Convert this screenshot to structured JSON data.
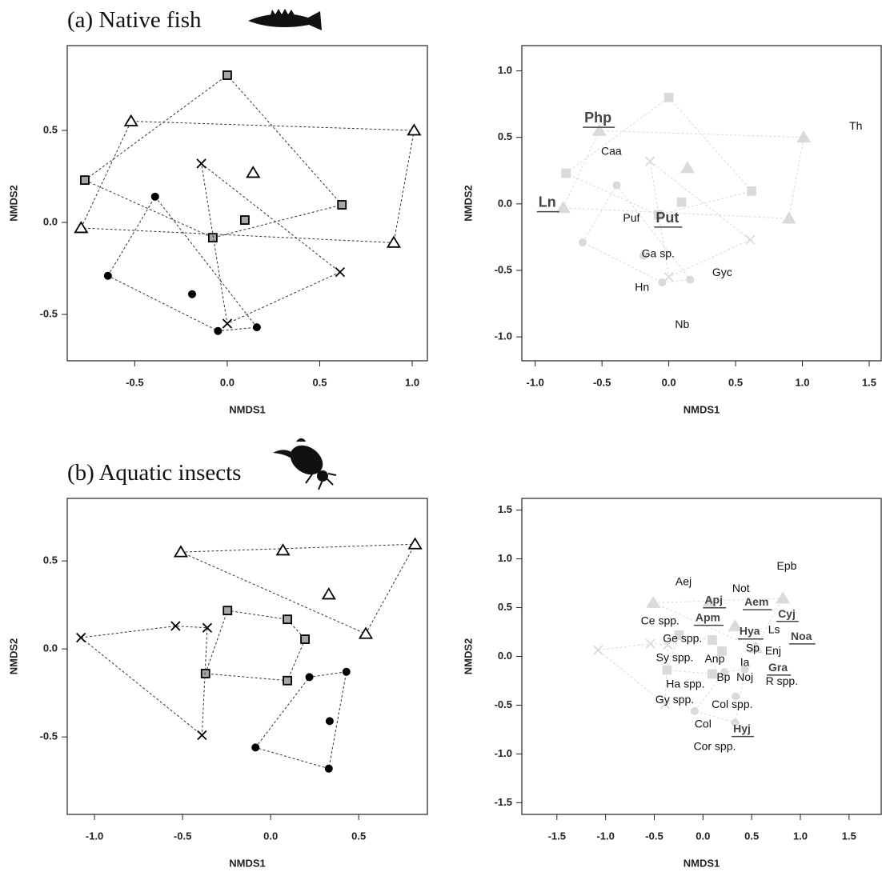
{
  "chart_data": [
    {
      "type": "scatter",
      "title": "(a) Native fish",
      "xlabel": "NMDS1",
      "ylabel": "NMDS2",
      "xlim": [
        -0.865,
        1.082
      ],
      "ylim": [
        -0.752,
        0.961
      ],
      "xticks": [
        -0.5,
        {
          "value": 0,
          "label": "0.0"
        },
        0.5,
        {
          "value": 1,
          "label": "1.0"
        }
      ],
      "yticks": [
        -0.5,
        {
          "value": 0,
          "label": "0.0"
        },
        0.5
      ],
      "hulls": true,
      "series": [
        {
          "marker": "square",
          "color": "#a6a6a6",
          "x": [
            0.0,
            -0.77,
            0.095,
            -0.078,
            0.62
          ],
          "y": [
            0.8,
            0.23,
            0.013,
            -0.083,
            0.096
          ]
        },
        {
          "marker": "triangle",
          "color": "#ffffff",
          "x": [
            -0.52,
            -0.79,
            0.14,
            1.01,
            0.9
          ],
          "y": [
            0.55,
            -0.03,
            0.27,
            0.5,
            -0.11
          ]
        },
        {
          "marker": "cross",
          "color": "#000000",
          "x": [
            -0.14,
            0.61,
            0.0
          ],
          "y": [
            0.32,
            -0.27,
            -0.55
          ]
        },
        {
          "marker": "circle",
          "color": "#000000",
          "x": [
            -0.39,
            -0.645,
            -0.19,
            -0.05,
            0.16
          ],
          "y": [
            0.14,
            -0.29,
            -0.39,
            -0.59,
            -0.57
          ]
        }
      ]
    },
    {
      "type": "biplot",
      "xlabel": "NMDS1",
      "ylabel": "NMDS2",
      "xlim": [
        -1.1,
        1.59
      ],
      "ylim": [
        -1.18,
        1.19
      ],
      "xticks": [
        {
          "value": -1,
          "label": "-1.0"
        },
        -0.5,
        {
          "value": 0,
          "label": "0.0"
        },
        0.5,
        {
          "value": 1,
          "label": "1.0"
        },
        1.5
      ],
      "yticks": [
        {
          "value": -1,
          "label": "-1.0"
        },
        -0.5,
        {
          "value": 0,
          "label": "0.0"
        },
        0.5,
        {
          "value": 1,
          "label": "1.0"
        }
      ],
      "points_color": "#dadada",
      "labels": [
        {
          "text": "Php",
          "x": -0.53,
          "y": 0.64,
          "bold": true
        },
        {
          "text": "Th",
          "x": 1.4,
          "y": 0.58,
          "bold": false
        },
        {
          "text": "Caa",
          "x": -0.43,
          "y": 0.39,
          "bold": false
        },
        {
          "text": "Ln",
          "x": -0.91,
          "y": 0.006,
          "bold": true
        },
        {
          "text": "Puf",
          "x": -0.28,
          "y": -0.11,
          "bold": false
        },
        {
          "text": "Put",
          "x": -0.01,
          "y": -0.11,
          "bold": true
        },
        {
          "text": "Ga sp.",
          "x": -0.08,
          "y": -0.38,
          "bold": false
        },
        {
          "text": "Gyc",
          "x": 0.4,
          "y": -0.52,
          "bold": false
        },
        {
          "text": "Hn",
          "x": -0.2,
          "y": -0.63,
          "bold": false
        },
        {
          "text": "Nb",
          "x": 0.1,
          "y": -0.91,
          "bold": false
        }
      ]
    },
    {
      "type": "scatter",
      "title": "(b) Aquatic insects",
      "xlabel": "NMDS1",
      "ylabel": "NMDS2",
      "xlim": [
        -1.155,
        0.89
      ],
      "ylim": [
        -0.94,
        0.855
      ],
      "xticks": [
        {
          "value": -1,
          "label": "-1.0"
        },
        -0.5,
        {
          "value": 0,
          "label": "0.0"
        },
        0.5
      ],
      "yticks": [
        -0.5,
        {
          "value": 0,
          "label": "0.0"
        },
        0.5
      ],
      "hulls": true,
      "series": [
        {
          "marker": "triangle",
          "color": "#ffffff",
          "x": [
            -0.51,
            0.07,
            0.82,
            0.33,
            0.54
          ],
          "y": [
            0.55,
            0.56,
            0.595,
            0.31,
            0.086
          ]
        },
        {
          "marker": "square",
          "color": "#a6a6a6",
          "x": [
            -0.245,
            0.095,
            0.195,
            -0.37,
            0.095
          ],
          "y": [
            0.218,
            0.168,
            0.055,
            -0.14,
            -0.18
          ]
        },
        {
          "marker": "cross",
          "color": "#000000",
          "x": [
            -1.077,
            -0.54,
            -0.36,
            -0.39
          ],
          "y": [
            0.064,
            0.13,
            0.12,
            -0.49
          ]
        },
        {
          "marker": "circle",
          "color": "#000000",
          "x": [
            0.22,
            0.43,
            0.335,
            -0.086,
            0.33
          ],
          "y": [
            -0.16,
            -0.13,
            -0.41,
            -0.56,
            -0.68
          ]
        }
      ]
    },
    {
      "type": "biplot",
      "xlabel": "NMDS1",
      "ylabel": "NMDS2",
      "xlim": [
        -1.86,
        1.83
      ],
      "ylim": [
        -1.62,
        1.62
      ],
      "xticks": [
        -1.5,
        {
          "value": -1,
          "label": "-1.0"
        },
        -0.5,
        {
          "value": 0,
          "label": "0.0"
        },
        0.5,
        {
          "value": 1,
          "label": "1.0"
        },
        1.5
      ],
      "yticks": [
        -1.5,
        {
          "value": -1,
          "label": "-1.0"
        },
        -0.5,
        {
          "value": 0,
          "label": "0.0"
        },
        0.5,
        {
          "value": 1,
          "label": "1.0"
        },
        1.5
      ],
      "points_color": "#dadada",
      "labels": [
        {
          "text": "Epb",
          "x": 0.86,
          "y": 0.92,
          "bold": false
        },
        {
          "text": "Aej",
          "x": -0.2,
          "y": 0.76,
          "bold": false
        },
        {
          "text": "Not",
          "x": 0.39,
          "y": 0.69,
          "bold": false
        },
        {
          "text": "Apj",
          "x": 0.11,
          "y": 0.57,
          "bold": true
        },
        {
          "text": "Aem",
          "x": 0.55,
          "y": 0.55,
          "bold": true
        },
        {
          "text": "Cyj",
          "x": 0.86,
          "y": 0.43,
          "bold": true
        },
        {
          "text": "Ce spp.",
          "x": -0.44,
          "y": 0.36,
          "bold": false
        },
        {
          "text": "Apm",
          "x": 0.05,
          "y": 0.39,
          "bold": true
        },
        {
          "text": "Ls",
          "x": 0.73,
          "y": 0.27,
          "bold": false
        },
        {
          "text": "Hya",
          "x": 0.48,
          "y": 0.25,
          "bold": true
        },
        {
          "text": "Ge spp.",
          "x": -0.21,
          "y": 0.18,
          "bold": false
        },
        {
          "text": "Noa",
          "x": 1.01,
          "y": 0.2,
          "bold": true
        },
        {
          "text": "Sp",
          "x": 0.51,
          "y": 0.08,
          "bold": false
        },
        {
          "text": "Enj",
          "x": 0.72,
          "y": 0.05,
          "bold": false
        },
        {
          "text": "Sy spp.",
          "x": -0.29,
          "y": -0.02,
          "bold": false
        },
        {
          "text": "Anp",
          "x": 0.12,
          "y": -0.03,
          "bold": false
        },
        {
          "text": "Ia",
          "x": 0.43,
          "y": -0.07,
          "bold": false
        },
        {
          "text": "Gra",
          "x": 0.77,
          "y": -0.12,
          "bold": true
        },
        {
          "text": "Ha spp.",
          "x": -0.18,
          "y": -0.29,
          "bold": false
        },
        {
          "text": "Bp",
          "x": 0.21,
          "y": -0.22,
          "bold": false
        },
        {
          "text": "Noj",
          "x": 0.43,
          "y": -0.22,
          "bold": false
        },
        {
          "text": "R spp.",
          "x": 0.81,
          "y": -0.26,
          "bold": false
        },
        {
          "text": "Gy spp.",
          "x": -0.29,
          "y": -0.45,
          "bold": false
        },
        {
          "text": "Col spp.",
          "x": 0.3,
          "y": -0.5,
          "bold": false
        },
        {
          "text": "Col",
          "x": 0.0,
          "y": -0.7,
          "bold": false
        },
        {
          "text": "Hyj",
          "x": 0.4,
          "y": -0.75,
          "bold": true
        },
        {
          "text": "Cor spp.",
          "x": 0.12,
          "y": -0.93,
          "bold": false
        }
      ]
    }
  ]
}
